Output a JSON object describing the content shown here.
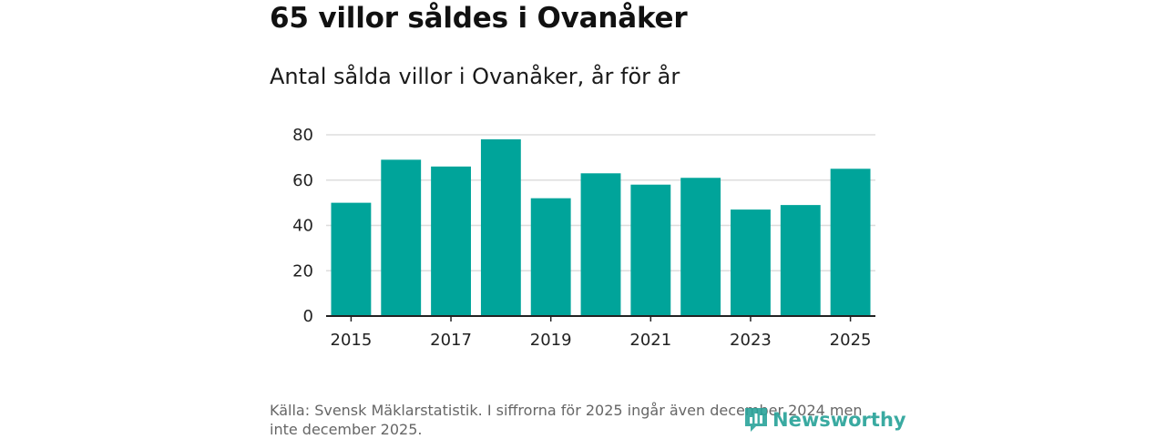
{
  "title": "65 villor såldes i Ovanåker",
  "subtitle": "Antal sålda villor i Ovanåker, år för år",
  "source": "Källa: Svensk Mäklarstatistik. I siffrorna för 2025 ingår även december 2024 men inte december 2025.",
  "logo": {
    "text": "Newsworthy",
    "icon": "newsworthy-logo-icon"
  },
  "colors": {
    "bar": "#00a49a",
    "grid": "#dddddd",
    "axis": "#222222",
    "logo": "#2aa39a"
  },
  "chart_data": {
    "type": "bar",
    "title": "65 villor såldes i Ovanåker",
    "subtitle": "Antal sålda villor i Ovanåker, år för år",
    "xlabel": "",
    "ylabel": "",
    "categories": [
      "2015",
      "2016",
      "2017",
      "2018",
      "2019",
      "2020",
      "2021",
      "2022",
      "2023",
      "2024",
      "2025"
    ],
    "values": [
      50,
      69,
      66,
      78,
      52,
      63,
      58,
      61,
      47,
      49,
      65
    ],
    "ylim": [
      0,
      80
    ],
    "yticks": [
      0,
      20,
      40,
      60,
      80
    ],
    "xticks": [
      "2015",
      "2017",
      "2019",
      "2021",
      "2023",
      "2025"
    ],
    "grid": true,
    "legend": "none"
  }
}
